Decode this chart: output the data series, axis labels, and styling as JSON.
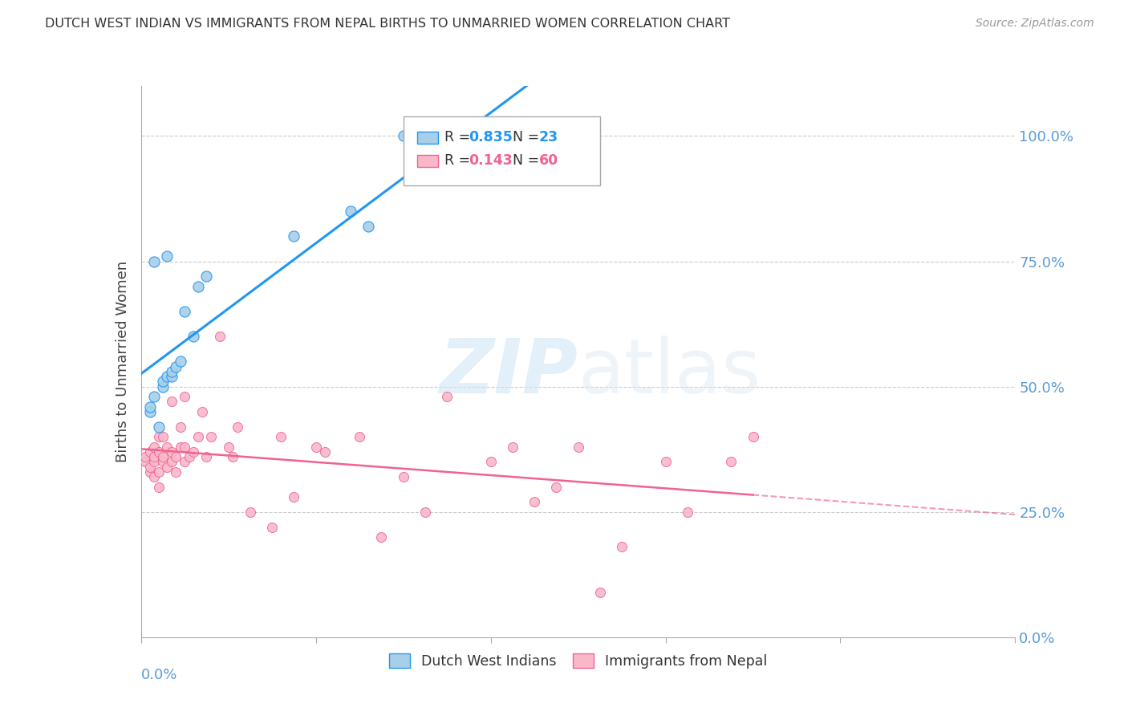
{
  "title": "DUTCH WEST INDIAN VS IMMIGRANTS FROM NEPAL BIRTHS TO UNMARRIED WOMEN CORRELATION CHART",
  "source": "Source: ZipAtlas.com",
  "ylabel": "Births to Unmarried Women",
  "right_yticks": [
    0.0,
    0.25,
    0.5,
    0.75,
    1.0
  ],
  "right_yticklabels": [
    "0.0%",
    "25.0%",
    "50.0%",
    "75.0%",
    "100.0%"
  ],
  "blue_R": 0.835,
  "blue_N": 23,
  "pink_R": 0.143,
  "pink_N": 60,
  "blue_dot_color": "#a8cfe8",
  "pink_dot_color": "#f9b8c9",
  "blue_line_color": "#2196F3",
  "pink_line_color": "#f06292",
  "grid_color": "#cccccc",
  "title_color": "#333333",
  "axis_label_color": "#5b9bd5",
  "blue_scatter_x": [
    0.002,
    0.002,
    0.003,
    0.003,
    0.004,
    0.005,
    0.005,
    0.006,
    0.006,
    0.007,
    0.007,
    0.008,
    0.009,
    0.01,
    0.012,
    0.013,
    0.015,
    0.035,
    0.048,
    0.052,
    0.06,
    0.065,
    0.09
  ],
  "blue_scatter_y": [
    0.45,
    0.46,
    0.75,
    0.48,
    0.42,
    0.5,
    0.51,
    0.52,
    0.76,
    0.52,
    0.53,
    0.54,
    0.55,
    0.65,
    0.6,
    0.7,
    0.72,
    0.8,
    0.85,
    0.82,
    1.0,
    1.0,
    1.0
  ],
  "pink_scatter_x": [
    0.001,
    0.001,
    0.002,
    0.002,
    0.002,
    0.003,
    0.003,
    0.003,
    0.003,
    0.004,
    0.004,
    0.004,
    0.004,
    0.005,
    0.005,
    0.005,
    0.006,
    0.006,
    0.007,
    0.007,
    0.007,
    0.008,
    0.008,
    0.009,
    0.009,
    0.01,
    0.01,
    0.01,
    0.011,
    0.012,
    0.013,
    0.014,
    0.015,
    0.016,
    0.018,
    0.02,
    0.021,
    0.022,
    0.025,
    0.03,
    0.032,
    0.035,
    0.04,
    0.042,
    0.05,
    0.055,
    0.06,
    0.065,
    0.07,
    0.08,
    0.085,
    0.09,
    0.095,
    0.1,
    0.105,
    0.11,
    0.12,
    0.125,
    0.135,
    0.14
  ],
  "pink_scatter_y": [
    0.35,
    0.36,
    0.33,
    0.34,
    0.37,
    0.32,
    0.35,
    0.36,
    0.38,
    0.3,
    0.33,
    0.37,
    0.4,
    0.35,
    0.36,
    0.4,
    0.34,
    0.38,
    0.35,
    0.37,
    0.47,
    0.33,
    0.36,
    0.38,
    0.42,
    0.35,
    0.38,
    0.48,
    0.36,
    0.37,
    0.4,
    0.45,
    0.36,
    0.4,
    0.6,
    0.38,
    0.36,
    0.42,
    0.25,
    0.22,
    0.4,
    0.28,
    0.38,
    0.37,
    0.4,
    0.2,
    0.32,
    0.25,
    0.48,
    0.35,
    0.38,
    0.27,
    0.3,
    0.38,
    0.09,
    0.18,
    0.35,
    0.25,
    0.35,
    0.4
  ],
  "xlim": [
    0.0,
    0.2
  ],
  "ylim": [
    0.0,
    1.1
  ],
  "watermark_zip": "ZIP",
  "watermark_atlas": "atlas",
  "figsize": [
    14.06,
    8.92
  ],
  "dpi": 100
}
